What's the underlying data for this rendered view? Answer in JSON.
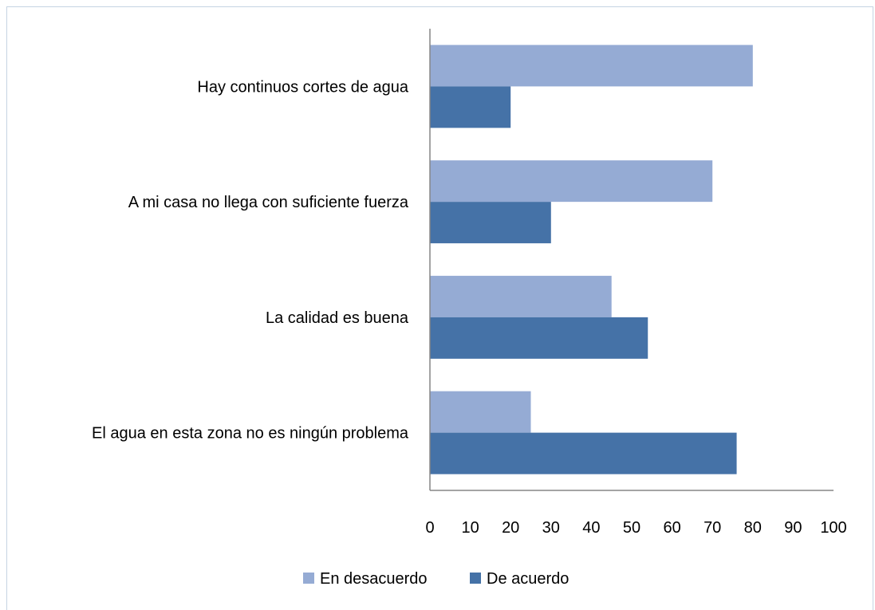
{
  "chart_data": {
    "type": "bar",
    "orientation": "horizontal",
    "categories": [
      "Hay continuos cortes de agua",
      "A mi casa no llega con suficiente fuerza",
      "La calidad es buena",
      "El agua en esta zona no es ningún problema"
    ],
    "series": [
      {
        "name": "En desacuerdo",
        "color": "#95abd4",
        "values": [
          80,
          70,
          45,
          25
        ]
      },
      {
        "name": "De acuerdo",
        "color": "#4572a7",
        "values": [
          20,
          30,
          54,
          76
        ]
      }
    ],
    "xlim": [
      0,
      100
    ],
    "xticks": [
      "0",
      "10",
      "20",
      "30",
      "40",
      "50",
      "60",
      "70",
      "80",
      "90",
      "100"
    ],
    "title": "",
    "xlabel": "",
    "ylabel": "",
    "grid": false,
    "legend_position": "bottom"
  }
}
